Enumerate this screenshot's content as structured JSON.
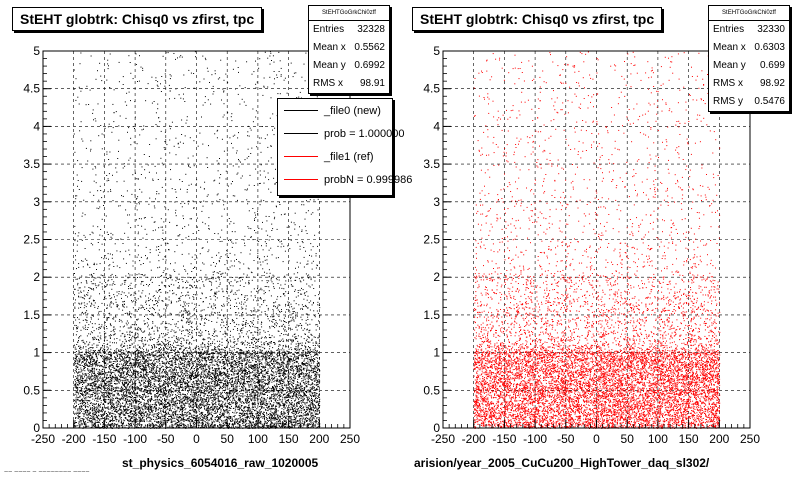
{
  "chart_data": [
    {
      "type": "scatter",
      "title": "StEHT globtrk: Chisq0 vs zfirst, tpc",
      "xlabel": "st_physics_6054016_raw_1020005",
      "ylabel": "",
      "xlim": [
        -250,
        250
      ],
      "ylim": [
        0,
        5
      ],
      "xticks": [
        -250,
        -200,
        -150,
        -100,
        -50,
        0,
        50,
        100,
        150,
        200,
        250
      ],
      "yticks": [
        0,
        0.5,
        1,
        1.5,
        2,
        2.5,
        3,
        3.5,
        4,
        4.5,
        5
      ],
      "grid": true,
      "marker_color": "#000000",
      "point_count": 12000,
      "distribution": {
        "x_range": [
          -200,
          200
        ],
        "dense_y_range": [
          0,
          1
        ],
        "y_mean": 0.7
      },
      "stats": {
        "title": "StEHTGoGrkChi0zff",
        "rows": [
          {
            "label": "Entries",
            "value": "32328"
          },
          {
            "label": "Mean x",
            "value": "0.5562"
          },
          {
            "label": "Mean y",
            "value": "0.6992"
          },
          {
            "label": "RMS x",
            "value": "98.91"
          }
        ]
      },
      "legend": {
        "placement": "top-right",
        "entries": [
          {
            "label": "_file0 (new)",
            "color": "#000000"
          },
          {
            "label": "prob = 1.000000",
            "color": "#000000"
          },
          {
            "label": "_file1 (ref)",
            "color": "#ff0000"
          },
          {
            "label": "probN = 0.999986",
            "color": "#ff0000"
          }
        ]
      }
    },
    {
      "type": "scatter",
      "title": "StEHT globtrk: Chisq0 vs zfirst, tpc",
      "xlabel": "arision/year_2005_CuCu200_HighTower_daq_sl302/",
      "ylabel": "",
      "xlim": [
        -250,
        250
      ],
      "ylim": [
        0,
        5
      ],
      "xticks": [
        -250,
        -200,
        -150,
        -100,
        -50,
        0,
        50,
        100,
        150,
        200,
        250
      ],
      "yticks": [
        0,
        0.5,
        1,
        1.5,
        2,
        2.5,
        3,
        3.5,
        4,
        4.5,
        5
      ],
      "grid": true,
      "marker_color": "#ff0000",
      "point_count": 12000,
      "distribution": {
        "x_range": [
          -200,
          200
        ],
        "dense_y_range": [
          0,
          1
        ],
        "y_mean": 0.7
      },
      "stats": {
        "title": "StEHTGoGrkChi0zff",
        "rows": [
          {
            "label": "Entries",
            "value": "32330"
          },
          {
            "label": "Mean x",
            "value": "0.6303"
          },
          {
            "label": "Mean y",
            "value": "0.699"
          },
          {
            "label": "RMS x",
            "value": "98.92"
          },
          {
            "label": "RMS y",
            "value": "0.5476"
          }
        ]
      }
    }
  ],
  "footer_text": "~~ ~~~~ ~ ~~~~~~~~ ~~~~"
}
